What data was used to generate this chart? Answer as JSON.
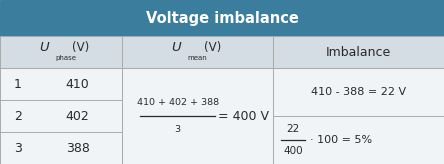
{
  "title": "Voltage imbalance",
  "title_bg": "#3a7d9c",
  "title_color": "#ffffff",
  "header_bg": "#d4dce4",
  "cell_bg": "#f0f4f7",
  "border_color": "#aaaaaa",
  "col_header_3": "Imbalance",
  "phases": [
    1,
    2,
    3
  ],
  "voltages": [
    410,
    402,
    388
  ],
  "mean_numerator": "410 + 402 + 388",
  "mean_denominator": "3",
  "mean_result": "= 400 V",
  "imbalance_line1": "410 - 388 = 22 V",
  "imbalance_line2_num": "22",
  "imbalance_line2_den": "400",
  "imbalance_line2_rest": "· 100 = 5%",
  "text_color": "#2a2a2a",
  "fig_width": 4.44,
  "fig_height": 1.64,
  "dpi": 100,
  "col_splits": [
    0.0,
    0.275,
    0.615,
    1.0
  ],
  "row_splits": [
    0.0,
    0.195,
    0.39,
    0.585,
    0.78,
    1.0
  ]
}
